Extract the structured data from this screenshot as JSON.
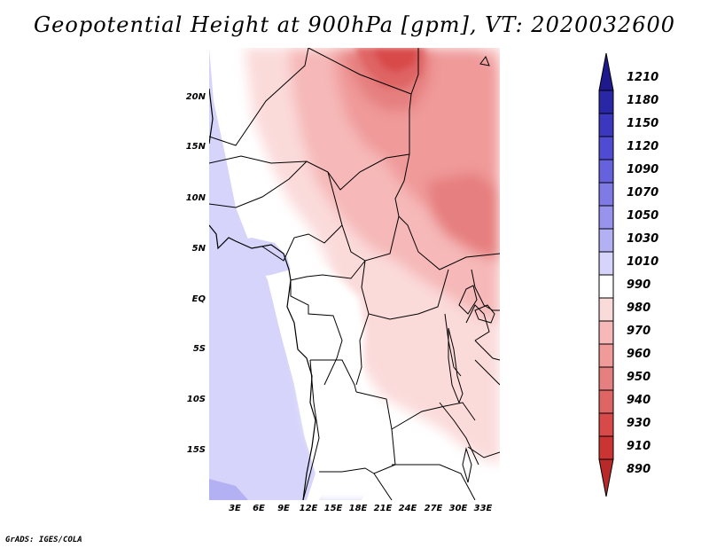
{
  "title": "Geopotential Height at 900hPa [gpm], VT: 2020032600",
  "map": {
    "lat_labels": [
      "20N",
      "15N",
      "10N",
      "5N",
      "EQ",
      "5S",
      "10S",
      "15S"
    ],
    "lon_labels": [
      "3E",
      "6E",
      "9E",
      "12E",
      "15E",
      "18E",
      "21E",
      "24E",
      "27E",
      "30E",
      "33E"
    ]
  },
  "colorbar": {
    "levels": [
      "1210",
      "1180",
      "1150",
      "1120",
      "1090",
      "1070",
      "1050",
      "1030",
      "1010",
      "990",
      "980",
      "970",
      "960",
      "950",
      "940",
      "930",
      "910",
      "890"
    ],
    "colors": [
      "#1e1a8e",
      "#2a27a6",
      "#3b37be",
      "#4f4bd2",
      "#6662de",
      "#7f7be6",
      "#9894ee",
      "#b3b0f4",
      "#d6d4fa",
      "#ffffff",
      "#fbdada",
      "#f6b8b8",
      "#f09a9a",
      "#e67f7f",
      "#df6464",
      "#d84a4a",
      "#cc3333",
      "#b82a2a"
    ]
  },
  "credit": "GrADS: IGES/COLA"
}
